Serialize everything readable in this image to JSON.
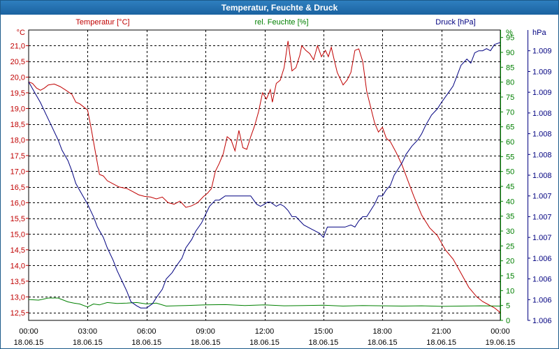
{
  "window": {
    "title": "Temperatur, Feuchte & Druck"
  },
  "chart_data": {
    "type": "line",
    "title": "Temperatur, Feuchte & Druck",
    "x_range": [
      0,
      24
    ],
    "x_ticks": [
      {
        "t": 0,
        "time": "00:00",
        "date": "18.06.15"
      },
      {
        "t": 3,
        "time": "03:00",
        "date": "18.06.15"
      },
      {
        "t": 6,
        "time": "06:00",
        "date": "18.06.15"
      },
      {
        "t": 9,
        "time": "09:00",
        "date": "18.06.15"
      },
      {
        "t": 12,
        "time": "12:00",
        "date": "18.06.15"
      },
      {
        "t": 15,
        "time": "15:00",
        "date": "18.06.15"
      },
      {
        "t": 18,
        "time": "18:00",
        "date": "18.06.15"
      },
      {
        "t": 21,
        "time": "21:00",
        "date": "18.06.15"
      },
      {
        "t": 24,
        "time": "00:00",
        "date": "19.06.15"
      }
    ],
    "axes": {
      "temperature": {
        "unit": "°C",
        "label": "Temperatur [°C]",
        "range": [
          12.25,
          21.5
        ],
        "ticks": [
          "21,0",
          "20,5",
          "20,0",
          "19,5",
          "19,0",
          "18,5",
          "18,0",
          "17,5",
          "17,0",
          "16,5",
          "16,0",
          "15,5",
          "15,0",
          "14,5",
          "14,0",
          "13,5",
          "13,0",
          "12,5"
        ],
        "tick_values": [
          21.0,
          20.5,
          20.0,
          19.5,
          19.0,
          18.5,
          18.0,
          17.5,
          17.0,
          16.5,
          16.0,
          15.5,
          15.0,
          14.5,
          14.0,
          13.5,
          13.0,
          12.5
        ]
      },
      "humidity": {
        "unit": "%",
        "label": "rel. Feuchte [%]",
        "range": [
          0,
          97.5
        ],
        "ticks": [
          "95",
          "90",
          "85",
          "80",
          "75",
          "70",
          "65",
          "60",
          "55",
          "50",
          "45",
          "40",
          "35",
          "30",
          "25",
          "20",
          "15",
          "10",
          "5",
          "0"
        ],
        "tick_values": [
          95,
          90,
          85,
          80,
          75,
          70,
          65,
          60,
          55,
          50,
          45,
          40,
          35,
          30,
          25,
          20,
          15,
          10,
          5,
          0
        ]
      },
      "pressure": {
        "unit": "hPa",
        "label": "Druck [hPa]",
        "range": [
          0,
          14
        ],
        "ticks": [
          "1.009",
          "1.009",
          "1.009",
          "1.008",
          "1.008",
          "1.008",
          "1.008",
          "1.007",
          "1.007",
          "1.007",
          "1.006",
          "1.006",
          "1.006",
          "1.006"
        ],
        "tick_values": [
          13,
          12,
          11,
          10,
          9,
          8,
          7,
          6,
          5,
          4,
          3,
          2,
          1,
          0
        ]
      }
    },
    "series": [
      {
        "name": "Temperatur",
        "unit": "°C",
        "axis": "temperature",
        "color": "#c00000",
        "x": [
          0,
          0.2,
          0.4,
          0.6,
          0.8,
          1.0,
          1.3,
          1.6,
          1.9,
          2.2,
          2.4,
          2.6,
          2.8,
          3.0,
          3.2,
          3.4,
          3.6,
          3.8,
          4.0,
          4.3,
          4.6,
          5.0,
          5.3,
          5.6,
          5.9,
          6.2,
          6.5,
          6.8,
          7.1,
          7.4,
          7.7,
          8.0,
          8.3,
          8.6,
          8.9,
          9.1,
          9.3,
          9.5,
          9.7,
          9.9,
          10.1,
          10.3,
          10.5,
          10.7,
          10.9,
          11.1,
          11.3,
          11.5,
          11.7,
          11.9,
          12.1,
          12.3,
          12.4,
          12.6,
          12.8,
          13.0,
          13.2,
          13.4,
          13.6,
          13.8,
          13.9,
          14.1,
          14.3,
          14.5,
          14.7,
          14.9,
          15.1,
          15.25,
          15.4,
          15.55,
          15.7,
          15.85,
          16.0,
          16.2,
          16.4,
          16.6,
          16.8,
          17.0,
          17.2,
          17.4,
          17.6,
          17.8,
          18.0,
          18.2,
          18.4,
          18.7,
          19.0,
          19.3,
          19.6,
          20.0,
          20.4,
          20.8,
          21.2,
          21.6,
          22.0,
          22.4,
          22.8,
          23.1,
          23.4,
          23.7,
          24.0
        ],
        "values": [
          19.85,
          19.8,
          19.65,
          19.58,
          19.65,
          19.75,
          19.78,
          19.7,
          19.58,
          19.45,
          19.2,
          19.15,
          19.05,
          18.95,
          18.3,
          17.6,
          16.9,
          16.85,
          16.7,
          16.6,
          16.5,
          16.45,
          16.35,
          16.25,
          16.2,
          16.18,
          16.12,
          16.18,
          16.0,
          15.95,
          16.05,
          15.85,
          15.9,
          16.0,
          16.2,
          16.3,
          16.45,
          17.0,
          17.25,
          17.55,
          18.1,
          18.0,
          17.65,
          18.3,
          17.75,
          17.7,
          18.1,
          18.45,
          18.9,
          19.5,
          19.3,
          19.6,
          19.2,
          19.8,
          19.9,
          20.3,
          21.15,
          20.2,
          20.3,
          20.7,
          21.0,
          20.85,
          20.75,
          20.55,
          21.0,
          20.65,
          20.85,
          20.65,
          20.95,
          20.55,
          20.15,
          19.95,
          19.75,
          19.9,
          20.15,
          20.85,
          20.9,
          20.5,
          19.55,
          19.05,
          18.55,
          18.25,
          18.4,
          18.05,
          17.95,
          17.6,
          17.2,
          16.7,
          16.2,
          15.6,
          15.2,
          14.95,
          14.5,
          14.2,
          13.75,
          13.3,
          13.0,
          12.85,
          12.75,
          12.65,
          12.5
        ]
      },
      {
        "name": "rel. Feuchte",
        "unit": "%",
        "axis": "humidity",
        "color": "#008000",
        "x": [
          0,
          0.5,
          1.0,
          1.5,
          2.0,
          2.3,
          2.6,
          3.0,
          3.3,
          3.6,
          4.0,
          4.5,
          5.0,
          5.5,
          6.0,
          6.5,
          7.0,
          8.0,
          9.0,
          10.0,
          11.0,
          12.0,
          13.0,
          14.0,
          15.0,
          16.0,
          17.0,
          18.0,
          19.0,
          20.0,
          21.0,
          22.0,
          23.0,
          24.0
        ],
        "values": [
          7.0,
          6.8,
          7.5,
          7.5,
          6.2,
          5.8,
          5.5,
          4.5,
          5.5,
          5.2,
          6.0,
          5.7,
          5.8,
          6.0,
          5.5,
          5.8,
          4.8,
          5.0,
          5.2,
          5.3,
          5.0,
          5.2,
          4.9,
          5.0,
          5.1,
          4.8,
          5.0,
          4.9,
          4.8,
          4.9,
          4.7,
          4.8,
          4.9,
          4.8
        ]
      },
      {
        "name": "Druck",
        "unit": "hPa",
        "axis": "pressure",
        "color": "#000080",
        "x": [
          0,
          0.3,
          0.6,
          0.9,
          1.2,
          1.5,
          1.7,
          2.0,
          2.2,
          2.4,
          2.7,
          3.0,
          3.3,
          3.5,
          3.8,
          4.0,
          4.3,
          4.5,
          4.8,
          5.0,
          5.2,
          5.5,
          5.7,
          6.0,
          6.3,
          6.5,
          6.8,
          7.0,
          7.3,
          7.5,
          7.8,
          8.0,
          8.3,
          8.5,
          8.8,
          9.0,
          9.2,
          9.5,
          9.7,
          10.0,
          10.2,
          10.5,
          10.8,
          11.0,
          11.3,
          11.6,
          11.8,
          12.0,
          12.15,
          12.3,
          12.45,
          12.6,
          12.8,
          13.0,
          13.2,
          13.4,
          13.6,
          13.8,
          14.0,
          14.2,
          14.4,
          14.6,
          14.8,
          15.0,
          15.2,
          15.5,
          15.8,
          16.1,
          16.4,
          16.6,
          16.8,
          17.0,
          17.2,
          17.4,
          17.6,
          17.8,
          18.0,
          18.2,
          18.4,
          18.6,
          18.8,
          19.0,
          19.2,
          19.5,
          19.8,
          20.0,
          20.2,
          20.5,
          20.8,
          21.0,
          21.3,
          21.6,
          21.8,
          22.0,
          22.3,
          22.5,
          22.7,
          22.9,
          23.1,
          23.3,
          23.5,
          23.7,
          24.0
        ],
        "values": [
          11.5,
          11.0,
          10.5,
          9.9,
          9.3,
          8.7,
          8.2,
          7.7,
          7.2,
          6.6,
          6.1,
          5.6,
          5.0,
          4.5,
          4.0,
          3.5,
          2.9,
          2.4,
          1.8,
          1.4,
          0.9,
          0.7,
          0.6,
          0.6,
          0.8,
          1.1,
          1.5,
          2.0,
          2.3,
          2.6,
          3.0,
          3.5,
          3.9,
          4.3,
          4.7,
          5.1,
          5.5,
          5.8,
          5.8,
          6.0,
          6.0,
          6.0,
          6.0,
          6.0,
          6.0,
          5.6,
          5.5,
          5.6,
          5.7,
          5.7,
          5.6,
          5.5,
          5.6,
          5.5,
          5.3,
          5.0,
          5.0,
          4.8,
          4.6,
          4.5,
          4.4,
          4.3,
          4.2,
          4.0,
          4.5,
          4.5,
          4.5,
          4.5,
          4.6,
          4.5,
          4.8,
          5.0,
          5.0,
          5.3,
          5.6,
          6.0,
          6.0,
          6.3,
          6.5,
          7.0,
          7.3,
          7.6,
          8.0,
          8.4,
          8.7,
          9.0,
          9.4,
          9.9,
          10.2,
          10.5,
          10.9,
          11.3,
          11.8,
          12.3,
          12.6,
          12.4,
          12.9,
          13.0,
          13.0,
          13.1,
          13.0,
          13.3,
          13.4
        ]
      }
    ]
  }
}
